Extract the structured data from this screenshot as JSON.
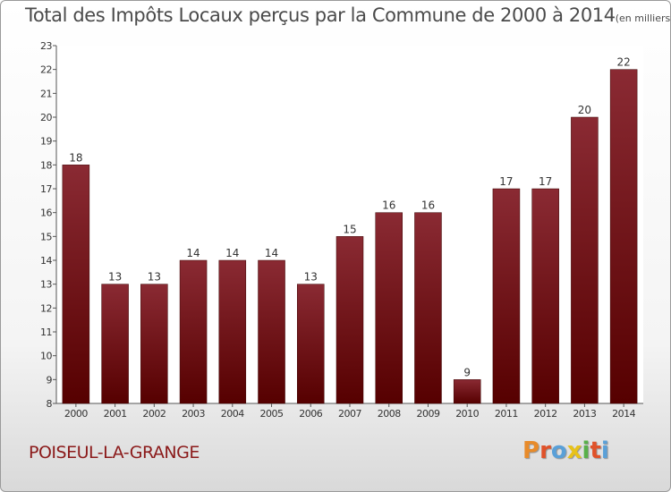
{
  "header": {
    "title": "Total des Impôts Locaux perçus par la Commune de 2000 à 2014",
    "unit": "(en milliers d'€)"
  },
  "footer": {
    "commune": "POISEUL-LA-GRANGE",
    "brand": "Proxiti"
  },
  "colors": {
    "bar_top": "#8a2a33",
    "bar_bottom": "#560000",
    "commune": "#8b1a1a",
    "brand_letters": [
      "#e88b2a",
      "#e0522a",
      "#5aa0d8",
      "#e8c21a",
      "#58b04a",
      "#e0522a",
      "#5aa0d8"
    ]
  },
  "chart_data": {
    "type": "bar",
    "title": "Total des Impôts Locaux perçus par la Commune de 2000 à 2014",
    "subtitle": "(en milliers d'€)",
    "xlabel": "",
    "ylabel": "",
    "categories": [
      "2000",
      "2001",
      "2002",
      "2003",
      "2004",
      "2005",
      "2006",
      "2007",
      "2008",
      "2009",
      "2010",
      "2011",
      "2012",
      "2013",
      "2014"
    ],
    "values": [
      18,
      13,
      13,
      14,
      14,
      14,
      13,
      15,
      16,
      16,
      9,
      17,
      17,
      20,
      22
    ],
    "ylim": [
      8,
      23
    ],
    "yticks": [
      8,
      9,
      10,
      11,
      12,
      13,
      14,
      15,
      16,
      17,
      18,
      19,
      20,
      21,
      22,
      23
    ],
    "grid": false,
    "data_labels": true
  }
}
